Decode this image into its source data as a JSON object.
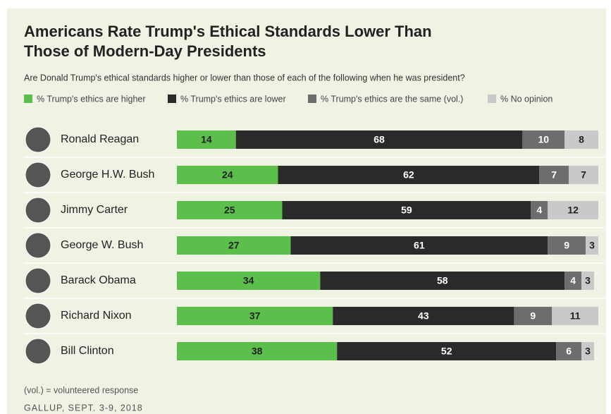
{
  "chart_data": {
    "type": "stacked_barh",
    "title": [
      "Americans Rate Trump's Ethical Standards Lower Than",
      "Those of Modern-Day Presidents"
    ],
    "subtitle": "Are Donald Trump's ethical standards higher or lower than those of each of the following when he was president?",
    "categories": [
      "Ronald Reagan",
      "George H.W. Bush",
      "Jimmy Carter",
      "George W. Bush",
      "Barack Obama",
      "Richard Nixon",
      "Bill Clinton"
    ],
    "series": [
      {
        "name": "% Trump's ethics are higher",
        "color": "#5cbf4b",
        "label_color": "#222222",
        "values": [
          14,
          24,
          25,
          27,
          34,
          37,
          38
        ]
      },
      {
        "name": "% Trump's ethics are lower",
        "color": "#2a2a2a",
        "label_color": "#ffffff",
        "values": [
          68,
          62,
          59,
          61,
          58,
          43,
          52
        ]
      },
      {
        "name": "% Trump's ethics are the same (vol.)",
        "color": "#6d6d6d",
        "label_color": "#ffffff",
        "values": [
          10,
          7,
          4,
          9,
          4,
          9,
          6
        ]
      },
      {
        "name": "% No opinion",
        "color": "#c9c9c9",
        "label_color": "#222222",
        "values": [
          8,
          7,
          12,
          3,
          3,
          11,
          3
        ]
      }
    ],
    "note": "(vol.) = volunteered response",
    "source": "GALLUP, SEPT. 3-9, 2018"
  }
}
